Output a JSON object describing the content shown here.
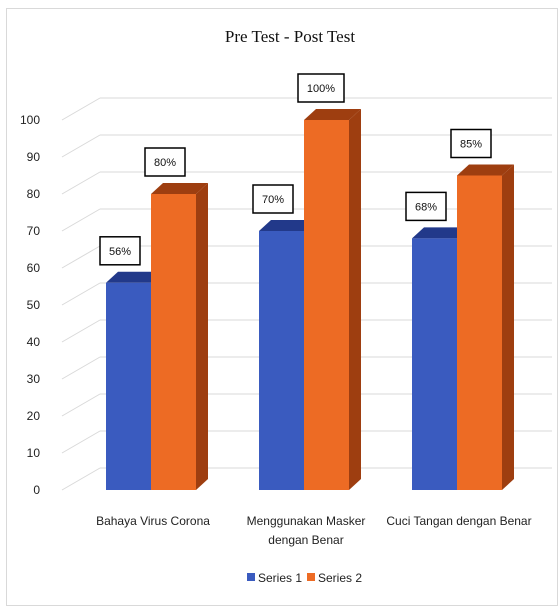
{
  "chart_data": {
    "type": "bar",
    "title": "Pre Test - Post Test",
    "categories": [
      [
        "Bahaya Virus Corona"
      ],
      [
        "Menggunakan Masker",
        "dengan Benar"
      ],
      [
        "Cuci Tangan dengan Benar"
      ]
    ],
    "series": [
      {
        "name": "Series 1",
        "values": [
          56,
          70,
          68
        ],
        "labels": [
          "56%",
          "70%",
          "68%"
        ],
        "color": "#3a5bbf",
        "side_color": "#22398a"
      },
      {
        "name": "Series 2",
        "values": [
          80,
          100,
          85
        ],
        "labels": [
          "80%",
          "100%",
          "85%"
        ],
        "color": "#ed6b24",
        "side_color": "#9e3e10"
      }
    ],
    "ylim": [
      0,
      100
    ],
    "yticks": [
      "0",
      "10",
      "20",
      "30",
      "40",
      "50",
      "60",
      "70",
      "80",
      "90",
      "100"
    ],
    "grid": true,
    "legend_position": "bottom"
  }
}
